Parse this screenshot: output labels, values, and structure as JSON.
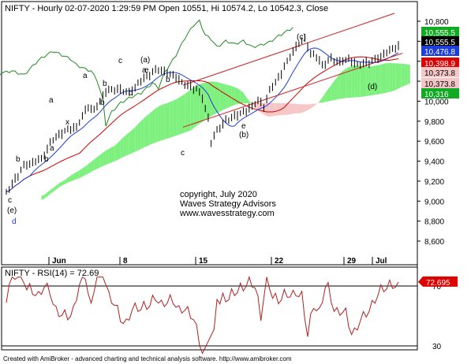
{
  "chart_data": [
    {
      "type": "ohlc",
      "title": "NIFTY - Hourly 02-07-2020 1:29:59 PM Open 10551, Hi 10574.2, Lo 10542.3, Close",
      "ylim": [
        8450,
        10880
      ],
      "yticks": [
        "10,800",
        "10,600",
        "10,400",
        "10,200",
        "10,000",
        "9,800",
        "9,600",
        "9,400",
        "9,200",
        "9,000",
        "8,800",
        "8,600"
      ],
      "x_labels": [
        "Jun",
        "8",
        "15",
        "22",
        "29",
        "Jul"
      ],
      "grid": false,
      "last_close": 10555.5,
      "value_tags": [
        {
          "text": "10,555.5",
          "color": "#11aa22"
        },
        {
          "text": "10,555.5",
          "color": "#000000"
        },
        {
          "text": "10,476.8",
          "color": "#1d3fd8"
        },
        {
          "text": "10,398.9",
          "color": "#dd0000"
        },
        {
          "text": "10,373.8",
          "color": "#f4c6c6"
        },
        {
          "text": "10,373.8",
          "color": "#f4c6c6"
        },
        {
          "text": "10,316",
          "color": "#11aa22"
        }
      ],
      "wave_labels": [
        "c",
        "(a)",
        "b",
        "a",
        "d",
        "b",
        "a",
        "b",
        "a",
        "x",
        "b",
        "e",
        "c",
        "(e)",
        "d",
        "c",
        "b",
        "(b)",
        "e",
        "(c)",
        "a",
        "(d)"
      ],
      "annotation": [
        "copyright, July 2020",
        "Waves Strategy Advisors",
        "www.wavesstrategy.com"
      ],
      "colors": {
        "price": "#000000",
        "fast_ma": "#1d3fd8",
        "slow_ma": "#cc0000",
        "cloud_bull": "#7ef07e",
        "cloud_bear": "#f7c6c6",
        "lagging": "#228822",
        "channel": "#cc2222"
      }
    },
    {
      "type": "line",
      "title": "NIFTY - RSI(14) = 72.69",
      "series": [
        {
          "name": "RSI(14)",
          "color": "#b02020",
          "last": 72.69
        }
      ],
      "yticks": [
        "70",
        "30"
      ],
      "value_tag": "72.695"
    }
  ],
  "footer": "Created with AmiBroker - advanced charting and technical analysis software. http://www.amibroker.com"
}
